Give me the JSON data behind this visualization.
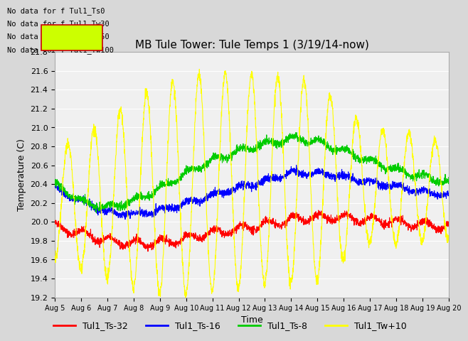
{
  "title": "MB Tule Tower: Tule Temps 1 (3/19/14-now)",
  "xlabel": "Time",
  "ylabel": "Temperature (C)",
  "ylim": [
    19.2,
    21.8
  ],
  "yticks": [
    19.2,
    19.4,
    19.6,
    19.8,
    20.0,
    20.2,
    20.4,
    20.6,
    20.8,
    21.0,
    21.2,
    21.4,
    21.6,
    21.8
  ],
  "x_labels": [
    "Aug 5",
    "Aug 6",
    "Aug 7",
    "Aug 8",
    "Aug 9",
    "Aug 10",
    "Aug 11",
    "Aug 12",
    "Aug 13",
    "Aug 14",
    "Aug 15",
    "Aug 16",
    "Aug 17",
    "Aug 18",
    "Aug 19",
    "Aug 20"
  ],
  "colors": {
    "red": "#ff0000",
    "blue": "#0000ff",
    "green": "#00cc00",
    "yellow": "#ffff00"
  },
  "legend_labels": [
    "Tul1_Ts-32",
    "Tul1_Ts-16",
    "Tul1_Ts-8",
    "Tul1_Tw+10"
  ],
  "no_data_labels": [
    "No data for f Tul1_Ts0",
    "No data for f Tul1_Tw30",
    "No data for f Tul1_Tw50",
    "No data for f Tul1_Tw100"
  ],
  "background_color": "#d8d8d8",
  "plot_bg_color": "#f0f0f0",
  "grid_color": "#ffffff",
  "title_fontsize": 11,
  "axis_fontsize": 9,
  "tick_fontsize": 8,
  "legend_fontsize": 9
}
